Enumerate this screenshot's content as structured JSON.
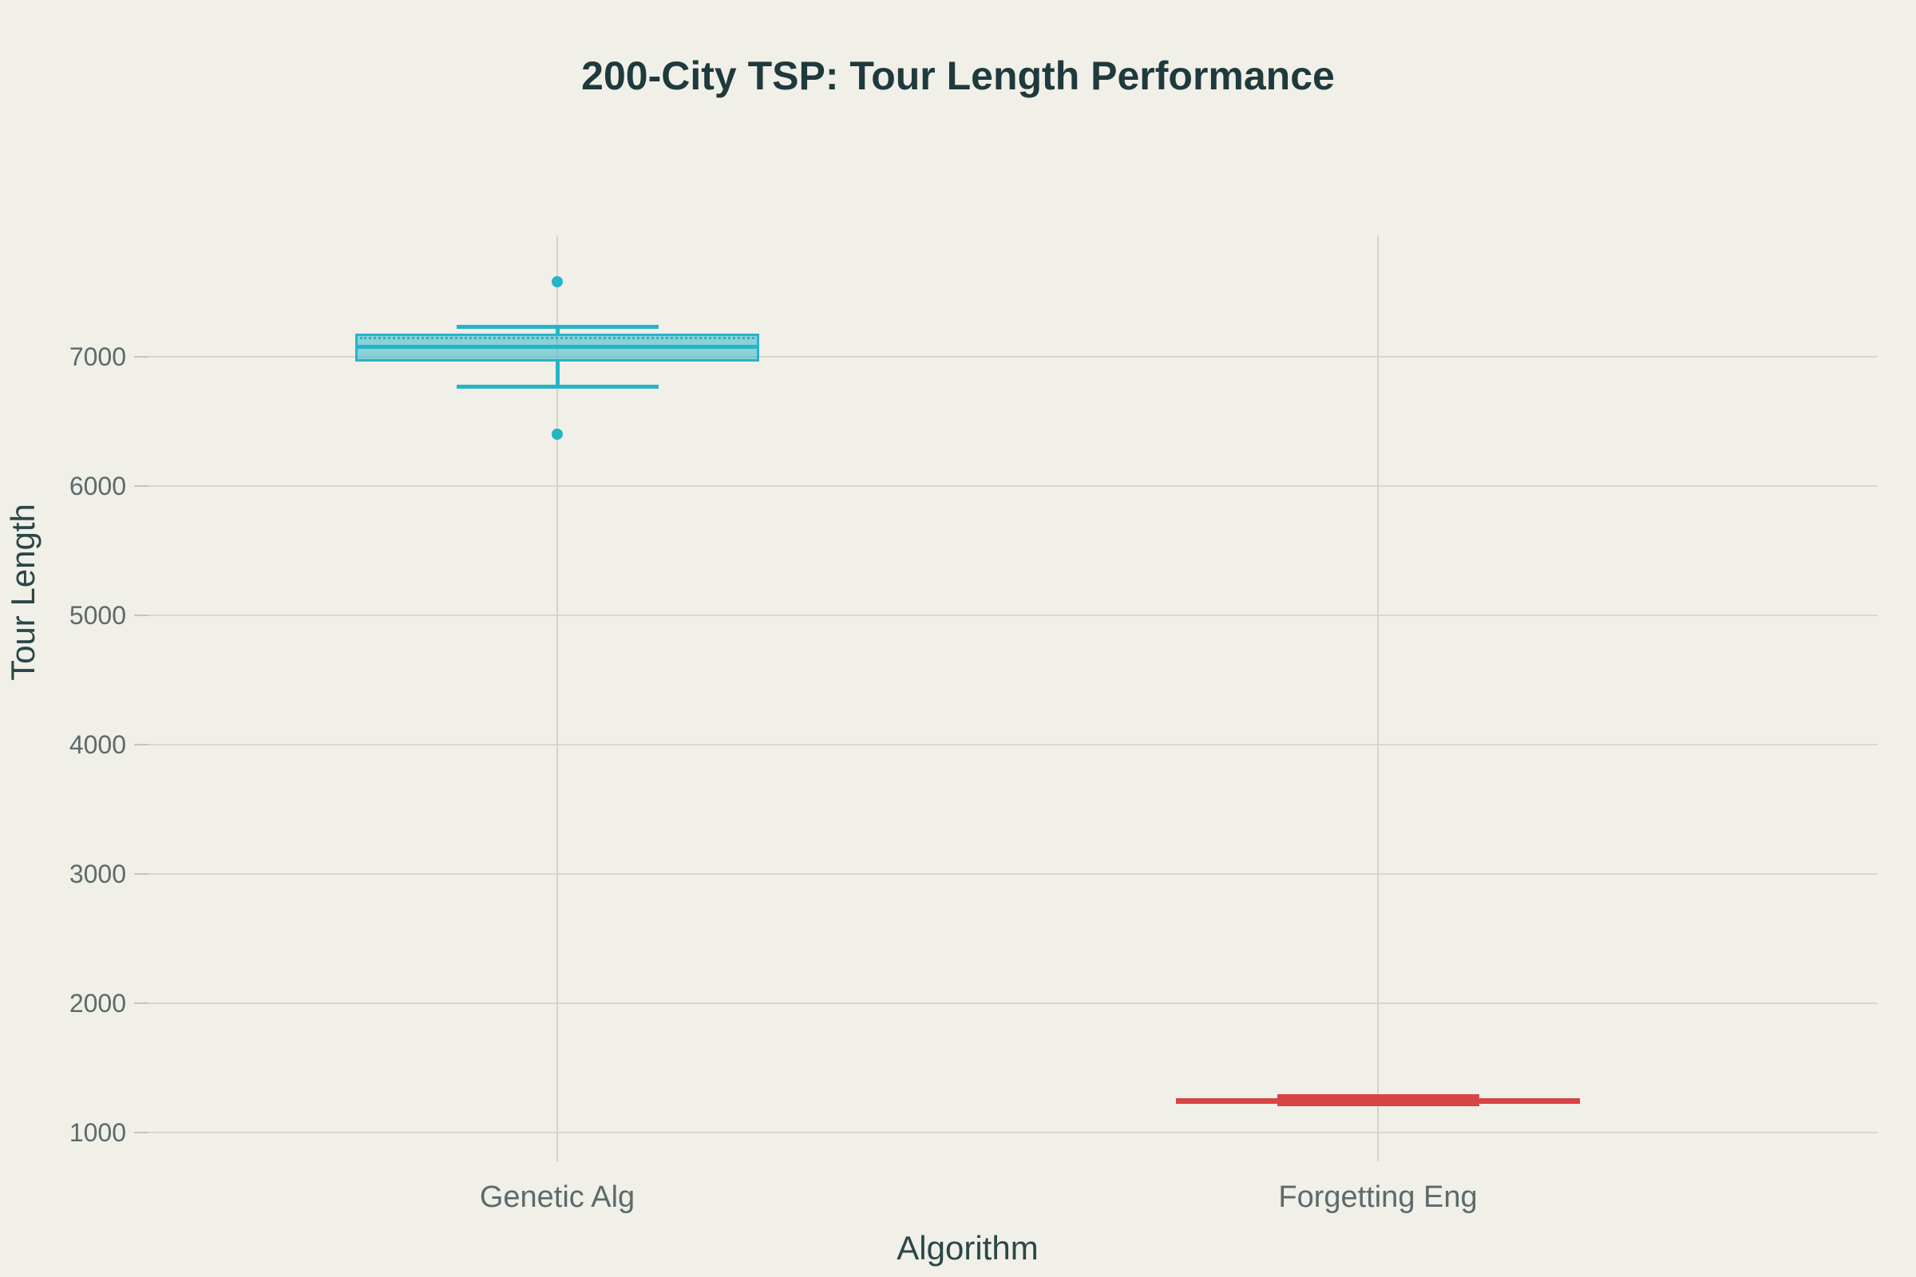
{
  "title": "200-City TSP: Tour Length Performance",
  "axes": {
    "y_title": "Tour Length",
    "x_title": "Algorithm",
    "y_tick_labels": [
      "1000",
      "2000",
      "3000",
      "4000",
      "5000",
      "6000",
      "7000"
    ],
    "x_category_labels": [
      "Genetic Alg",
      "Forgetting Eng"
    ]
  },
  "chart_data": {
    "type": "box",
    "title": "200-City TSP: Tour Length Performance",
    "xlabel": "Algorithm",
    "ylabel": "Tour Length",
    "categories": [
      "Genetic Alg",
      "Forgetting Eng"
    ],
    "y_tick_values": [
      1000,
      2000,
      3000,
      4000,
      5000,
      6000,
      7000
    ],
    "ylim_approx": [
      800,
      7940
    ],
    "grid": true,
    "legend": "none",
    "series": [
      {
        "name": "Genetic Alg",
        "color": "#26b4c8",
        "fill": "rgba(38,180,200,0.5)",
        "min": 6770,
        "q1": 6965,
        "median": 7080,
        "q3": 7180,
        "max": 7230,
        "mean": 7150,
        "outliers": [
          7580,
          6400
        ]
      },
      {
        "name": "Forgetting Eng",
        "color": "#d64444",
        "fill": "rgba(214,68,68,0.5)",
        "min": 1220,
        "q1": 1240,
        "median": 1250,
        "q3": 1260,
        "max": 1280,
        "outliers": []
      }
    ]
  },
  "colors": {
    "background": "#f0efe8",
    "gridline": "#d9d7d0",
    "category_line": "#d4d2cb",
    "tick_label": "#5b6b6b",
    "title_text": "#1f3a3c",
    "axis_title_text": "#2b4647",
    "series_cyan": "#26b4c8",
    "series_red": "#d64444"
  }
}
